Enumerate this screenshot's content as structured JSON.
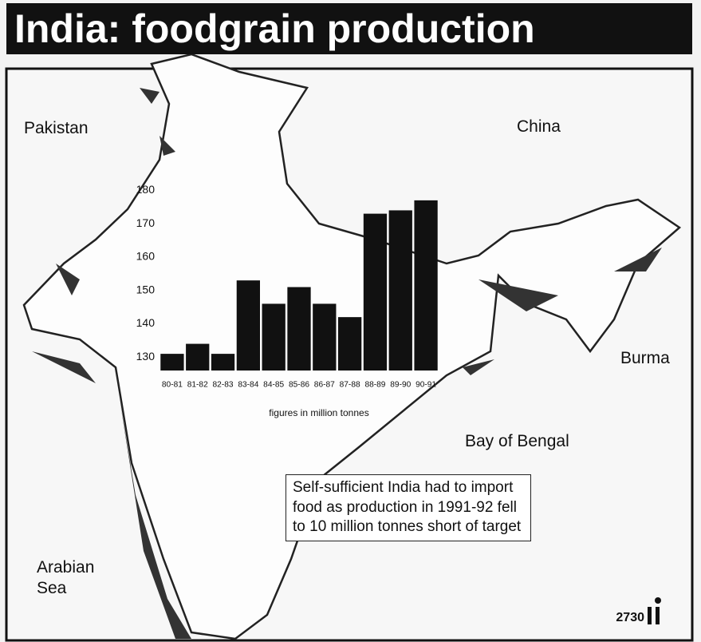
{
  "chart_data": {
    "type": "bar",
    "title": "India: foodgrain production",
    "categories": [
      "80-81",
      "81-82",
      "82-83",
      "83-84",
      "84-85",
      "85-86",
      "86-87",
      "87-88",
      "88-89",
      "89-90",
      "90-91"
    ],
    "values": [
      131,
      134,
      131,
      153,
      146,
      151,
      146,
      142,
      173,
      174,
      177
    ],
    "color": "#111111",
    "ylim": [
      126,
      182
    ],
    "yticks": [
      130,
      140,
      150,
      160,
      170,
      180
    ],
    "grid": false,
    "note": "figures in million tonnes",
    "map_labels": [
      "Pakistan",
      "China",
      "Burma",
      "Bay of Bengal",
      "Arabian Sea"
    ],
    "annotation": "Self-sufficient India had to import food as production in 1991-92 fell to 10 million tonnes short of target",
    "credit": "2730"
  }
}
